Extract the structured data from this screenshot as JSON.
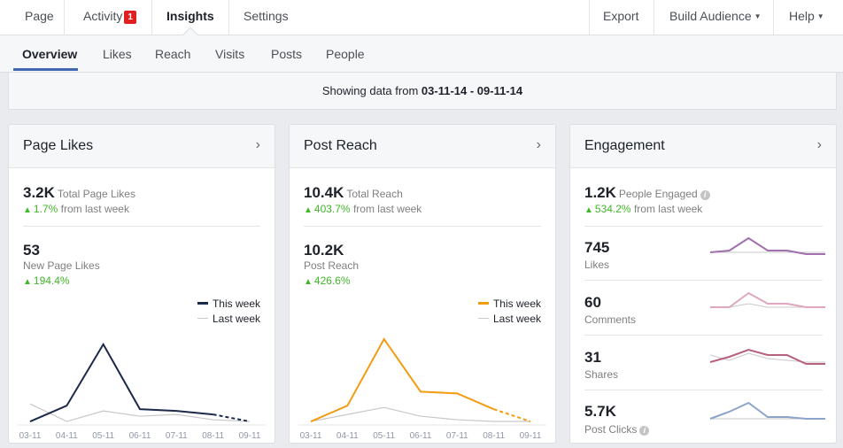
{
  "topnav": {
    "items": [
      {
        "label": "Page"
      },
      {
        "label": "Activity",
        "badge": "1"
      },
      {
        "label": "Insights"
      },
      {
        "label": "Settings"
      }
    ],
    "right": [
      {
        "label": "Export"
      },
      {
        "label": "Build Audience"
      },
      {
        "label": "Help"
      }
    ]
  },
  "subnav": {
    "tabs": [
      "Overview",
      "Likes",
      "Reach",
      "Visits",
      "Posts",
      "People"
    ],
    "active": "Overview"
  },
  "daterange": {
    "prefix": "Showing data from",
    "range": "03-11-14 - 09-11-14"
  },
  "cards": {
    "page_likes": {
      "title": "Page Likes",
      "total_value": "3.2K",
      "total_label": "Total Page Likes",
      "total_change": "1.7%",
      "total_change_suffix": "from last week",
      "new_value": "53",
      "new_label": "New Page Likes",
      "new_change": "194.4%",
      "legend_this": "This week",
      "legend_last": "Last week",
      "color_this": "#1c2a4a",
      "color_last": "#c8c8c8"
    },
    "post_reach": {
      "title": "Post Reach",
      "total_value": "10.4K",
      "total_label": "Total Reach",
      "total_change": "403.7%",
      "total_change_suffix": "from last week",
      "sub_value": "10.2K",
      "sub_label": "Post Reach",
      "sub_change": "426.6%",
      "legend_this": "This week",
      "legend_last": "Last week",
      "color_this": "#f39c12",
      "color_last": "#c8c8c8"
    },
    "engagement": {
      "title": "Engagement",
      "total_value": "1.2K",
      "total_label": "People Engaged",
      "total_change": "534.2%",
      "total_change_suffix": "from last week",
      "rows": [
        {
          "value": "745",
          "label": "Likes",
          "color": "#a170ad"
        },
        {
          "value": "60",
          "label": "Comments",
          "color": "#e0a6bd"
        },
        {
          "value": "31",
          "label": "Shares",
          "color": "#b8607f"
        },
        {
          "value": "5.7K",
          "label": "Post Clicks",
          "color": "#8ea3c9"
        }
      ]
    }
  },
  "chart_data": [
    {
      "type": "line",
      "categories": [
        "03-11",
        "04-11",
        "05-11",
        "06-11",
        "07-11",
        "08-11",
        "09-11"
      ],
      "series": [
        {
          "name": "This week",
          "values": [
            1,
            10,
            45,
            8,
            7,
            5,
            1
          ]
        },
        {
          "name": "Last week",
          "values": [
            11,
            1,
            7,
            4,
            5,
            2,
            1
          ]
        }
      ],
      "ylim": [
        0,
        50
      ],
      "legend": "top-right"
    },
    {
      "type": "line",
      "categories": [
        "03-11",
        "04-11",
        "05-11",
        "06-11",
        "07-11",
        "08-11",
        "09-11"
      ],
      "series": [
        {
          "name": "This week",
          "values": [
            1,
            10,
            48,
            18,
            17,
            8,
            1
          ]
        },
        {
          "name": "Last week",
          "values": [
            1,
            5,
            9,
            4,
            2,
            1,
            1
          ]
        }
      ],
      "ylim": [
        0,
        50
      ],
      "legend": "top-right"
    },
    {
      "type": "line",
      "series": [
        {
          "name": "Likes",
          "values": [
            2,
            2.5,
            6,
            2.5,
            2.5,
            1.5,
            1.5
          ]
        },
        {
          "name": "Likes last week",
          "values": [
            2,
            2,
            2,
            2,
            2,
            2,
            2
          ]
        },
        {
          "name": "Comments",
          "values": [
            2,
            2,
            6,
            3,
            3,
            2,
            2
          ]
        },
        {
          "name": "Comments last week",
          "values": [
            2,
            2,
            3,
            2,
            2,
            2,
            2
          ]
        },
        {
          "name": "Shares",
          "values": [
            2,
            3.5,
            5.5,
            4,
            4,
            1.5,
            1.5
          ]
        },
        {
          "name": "Shares last week",
          "values": [
            4,
            2.5,
            4.5,
            3,
            2.5,
            2,
            2
          ]
        },
        {
          "name": "Post Clicks",
          "values": [
            1.5,
            3.5,
            6,
            2,
            2,
            1.5,
            1.5
          ]
        },
        {
          "name": "Post Clicks last week",
          "values": [
            1.5,
            1.5,
            1.5,
            1.5,
            1.5,
            1.5,
            1.5
          ]
        }
      ],
      "ylim": [
        0,
        7
      ]
    }
  ]
}
